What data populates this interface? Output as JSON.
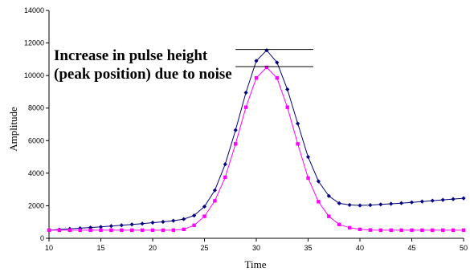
{
  "chart_data": {
    "type": "line",
    "title": "",
    "xlabel": "Time",
    "ylabel": "Amplitude",
    "xlim": [
      10,
      50
    ],
    "ylim": [
      0,
      14000
    ],
    "x_ticks": [
      10,
      15,
      20,
      25,
      30,
      35,
      40,
      45,
      50
    ],
    "y_ticks": [
      0,
      2000,
      4000,
      6000,
      8000,
      10000,
      12000,
      14000
    ],
    "x_tick_labels": [
      "10",
      "15",
      "20",
      "25",
      "30",
      "35",
      "40",
      "45",
      "50"
    ],
    "y_tick_labels": [
      "0",
      "2000",
      "4000",
      "6000",
      "8000",
      "10000",
      "12000",
      "14000"
    ],
    "grid": false,
    "legend": "none",
    "x": [
      10,
      11,
      12,
      13,
      14,
      15,
      16,
      17,
      18,
      19,
      20,
      21,
      22,
      23,
      24,
      25,
      26,
      27,
      28,
      29,
      30,
      31,
      32,
      33,
      34,
      35,
      36,
      37,
      38,
      39,
      40,
      41,
      42,
      43,
      44,
      45,
      46,
      47,
      48,
      49,
      50
    ],
    "series": [
      {
        "color": "#000080",
        "marker": "diamond",
        "values": [
          500,
          540,
          580,
          620,
          660,
          700,
          750,
          800,
          850,
          900,
          960,
          1010,
          1080,
          1180,
          1400,
          1950,
          2950,
          4550,
          6650,
          8950,
          10900,
          11550,
          10800,
          9150,
          7050,
          5000,
          3500,
          2600,
          2150,
          2050,
          2020,
          2040,
          2080,
          2120,
          2160,
          2210,
          2260,
          2310,
          2360,
          2410,
          2460
        ]
      },
      {
        "color": "#FF00FF",
        "marker": "square",
        "values": [
          500,
          500,
          500,
          500,
          500,
          500,
          500,
          500,
          500,
          500,
          500,
          500,
          500,
          550,
          800,
          1350,
          2300,
          3750,
          5800,
          8050,
          9850,
          10500,
          9850,
          8050,
          5800,
          3700,
          2250,
          1350,
          850,
          650,
          550,
          510,
          500,
          500,
          500,
          500,
          500,
          500,
          500,
          500,
          500
        ]
      }
    ],
    "annotations": [
      {
        "text": "Increase in pulse height",
        "line": 1
      },
      {
        "text": "(peak position) due to noise",
        "line": 2
      }
    ],
    "reference_lines": [
      {
        "y": 11600,
        "x_start": 28,
        "x_end": 35.5
      },
      {
        "y": 10550,
        "x_start": 28,
        "x_end": 35.5
      }
    ]
  }
}
